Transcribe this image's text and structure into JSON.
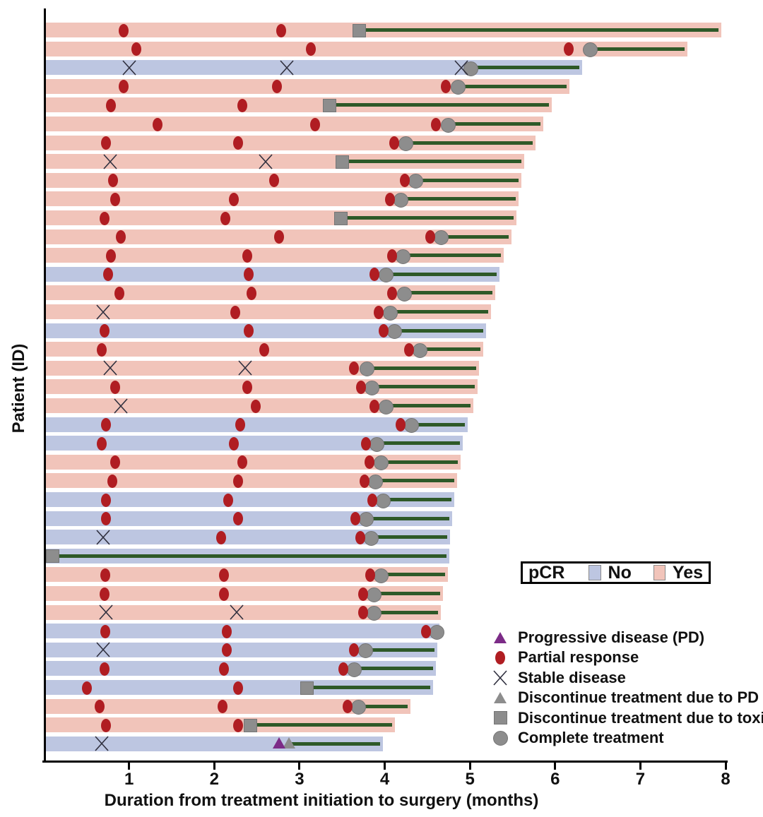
{
  "axes": {
    "x_title": "Duration from treatment initiation to surgery (months)",
    "y_title": "Patient (ID)",
    "x_ticks": [
      "1",
      "2",
      "3",
      "4",
      "5",
      "6",
      "7",
      "8"
    ],
    "x_min": 0,
    "x_max": 8
  },
  "pcr_legend": {
    "label": "pCR",
    "no_label": "No",
    "yes_label": "Yes"
  },
  "marker_legend": [
    {
      "type": "pd",
      "label": "Progressive disease (PD)"
    },
    {
      "type": "pr",
      "label": "Partial response"
    },
    {
      "type": "sd",
      "label": "Stable disease"
    },
    {
      "type": "pd_discontinue",
      "label": "Discontinue treatment due to PD"
    },
    {
      "type": "toxicity",
      "label": "Discontinue treatment due to toxicity"
    },
    {
      "type": "complete",
      "label": "Complete treatment"
    }
  ],
  "colors": {
    "pcr_yes_bar": "#f1c4ba",
    "pcr_no_bar": "#bdc6e1",
    "treatment_line": "#2e5928",
    "partial_response": "#b01d22",
    "gray_marker": "#8d8d8d",
    "gray_marker_edge": "#757575",
    "progressive_disease": "#7c2b87",
    "stable_disease_x": "#30303f",
    "axis": "#000000"
  },
  "chart_data": {
    "type": "swimmer_plot",
    "title": "",
    "xlabel": "Duration from treatment initiation to surgery (months)",
    "ylabel": "Patient (ID)",
    "xlim": [
      0,
      8
    ],
    "legend_position": "right-bottom",
    "event_types": {
      "pr": "partial response",
      "sd": "stable disease",
      "pd": "progressive disease"
    },
    "end_types": {
      "complete": "complete treatment",
      "toxicity": "discontinue treatment due to toxicity",
      "pd_discontinue": "discontinue treatment due to PD"
    },
    "patients": [
      {
        "id": 1,
        "pcr": "Yes",
        "surgery": 7.95,
        "end": {
          "type": "toxicity",
          "x": 3.7
        },
        "events": [
          {
            "t": "pr",
            "x": 0.95
          },
          {
            "t": "pr",
            "x": 2.8
          }
        ]
      },
      {
        "id": 2,
        "pcr": "Yes",
        "surgery": 7.55,
        "end": {
          "type": "complete",
          "x": 6.4
        },
        "events": [
          {
            "t": "pr",
            "x": 1.1
          },
          {
            "t": "pr",
            "x": 3.15
          },
          {
            "t": "pr",
            "x": 6.18
          }
        ]
      },
      {
        "id": 3,
        "pcr": "No",
        "surgery": 6.32,
        "end": {
          "type": "complete",
          "x": 5.0
        },
        "events": [
          {
            "t": "sd",
            "x": 1.0
          },
          {
            "t": "sd",
            "x": 2.85
          },
          {
            "t": "sd",
            "x": 4.9
          }
        ]
      },
      {
        "id": 4,
        "pcr": "Yes",
        "surgery": 6.17,
        "end": {
          "type": "complete",
          "x": 4.85
        },
        "events": [
          {
            "t": "pr",
            "x": 0.95
          },
          {
            "t": "pr",
            "x": 2.75
          },
          {
            "t": "pr",
            "x": 4.73
          }
        ]
      },
      {
        "id": 5,
        "pcr": "Yes",
        "surgery": 5.96,
        "end": {
          "type": "toxicity",
          "x": 3.35
        },
        "events": [
          {
            "t": "pr",
            "x": 0.8
          },
          {
            "t": "pr",
            "x": 2.35
          }
        ]
      },
      {
        "id": 6,
        "pcr": "Yes",
        "surgery": 5.86,
        "end": {
          "type": "complete",
          "x": 4.73
        },
        "events": [
          {
            "t": "pr",
            "x": 1.35
          },
          {
            "t": "pr",
            "x": 3.2
          },
          {
            "t": "pr",
            "x": 4.62
          }
        ]
      },
      {
        "id": 7,
        "pcr": "Yes",
        "surgery": 5.77,
        "end": {
          "type": "complete",
          "x": 4.24
        },
        "events": [
          {
            "t": "pr",
            "x": 0.75
          },
          {
            "t": "pr",
            "x": 2.3
          },
          {
            "t": "pr",
            "x": 4.13
          }
        ]
      },
      {
        "id": 8,
        "pcr": "Yes",
        "surgery": 5.64,
        "end": {
          "type": "toxicity",
          "x": 3.5
        },
        "events": [
          {
            "t": "sd",
            "x": 0.78
          },
          {
            "t": "sd",
            "x": 2.6
          }
        ]
      },
      {
        "id": 9,
        "pcr": "Yes",
        "surgery": 5.6,
        "end": {
          "type": "complete",
          "x": 4.35
        },
        "events": [
          {
            "t": "pr",
            "x": 0.83
          },
          {
            "t": "pr",
            "x": 2.72
          },
          {
            "t": "pr",
            "x": 4.25
          }
        ]
      },
      {
        "id": 10,
        "pcr": "Yes",
        "surgery": 5.57,
        "end": {
          "type": "complete",
          "x": 4.18
        },
        "events": [
          {
            "t": "pr",
            "x": 0.85
          },
          {
            "t": "pr",
            "x": 2.25
          },
          {
            "t": "pr",
            "x": 4.08
          }
        ]
      },
      {
        "id": 11,
        "pcr": "Yes",
        "surgery": 5.55,
        "end": {
          "type": "toxicity",
          "x": 3.48
        },
        "events": [
          {
            "t": "pr",
            "x": 0.73
          },
          {
            "t": "pr",
            "x": 2.15
          }
        ]
      },
      {
        "id": 12,
        "pcr": "Yes",
        "surgery": 5.49,
        "end": {
          "type": "complete",
          "x": 4.65
        },
        "events": [
          {
            "t": "pr",
            "x": 0.92
          },
          {
            "t": "pr",
            "x": 2.78
          },
          {
            "t": "pr",
            "x": 4.55
          }
        ]
      },
      {
        "id": 13,
        "pcr": "Yes",
        "surgery": 5.4,
        "end": {
          "type": "complete",
          "x": 4.2
        },
        "events": [
          {
            "t": "pr",
            "x": 0.8
          },
          {
            "t": "pr",
            "x": 2.4
          },
          {
            "t": "pr",
            "x": 4.1
          }
        ]
      },
      {
        "id": 14,
        "pcr": "No",
        "surgery": 5.35,
        "end": {
          "type": "complete",
          "x": 4.0
        },
        "events": [
          {
            "t": "pr",
            "x": 0.77
          },
          {
            "t": "pr",
            "x": 2.42
          },
          {
            "t": "pr",
            "x": 3.9
          }
        ]
      },
      {
        "id": 15,
        "pcr": "Yes",
        "surgery": 5.3,
        "end": {
          "type": "complete",
          "x": 4.22
        },
        "events": [
          {
            "t": "pr",
            "x": 0.9
          },
          {
            "t": "pr",
            "x": 2.45
          },
          {
            "t": "pr",
            "x": 4.1
          }
        ]
      },
      {
        "id": 16,
        "pcr": "Yes",
        "surgery": 5.25,
        "end": {
          "type": "complete",
          "x": 4.05
        },
        "events": [
          {
            "t": "sd",
            "x": 0.7
          },
          {
            "t": "pr",
            "x": 2.26
          },
          {
            "t": "pr",
            "x": 3.95
          }
        ]
      },
      {
        "id": 17,
        "pcr": "No",
        "surgery": 5.19,
        "end": {
          "type": "complete",
          "x": 4.1
        },
        "events": [
          {
            "t": "pr",
            "x": 0.73
          },
          {
            "t": "pr",
            "x": 2.42
          },
          {
            "t": "pr",
            "x": 4.0
          }
        ]
      },
      {
        "id": 18,
        "pcr": "Yes",
        "surgery": 5.16,
        "end": {
          "type": "complete",
          "x": 4.4
        },
        "events": [
          {
            "t": "pr",
            "x": 0.7
          },
          {
            "t": "pr",
            "x": 2.6
          },
          {
            "t": "pr",
            "x": 4.3
          }
        ]
      },
      {
        "id": 19,
        "pcr": "Yes",
        "surgery": 5.11,
        "end": {
          "type": "complete",
          "x": 3.78
        },
        "events": [
          {
            "t": "sd",
            "x": 0.78
          },
          {
            "t": "sd",
            "x": 2.36
          },
          {
            "t": "pr",
            "x": 3.66
          }
        ]
      },
      {
        "id": 20,
        "pcr": "Yes",
        "surgery": 5.09,
        "end": {
          "type": "complete",
          "x": 3.84
        },
        "events": [
          {
            "t": "pr",
            "x": 0.85
          },
          {
            "t": "pr",
            "x": 2.4
          },
          {
            "t": "pr",
            "x": 3.74
          }
        ]
      },
      {
        "id": 21,
        "pcr": "Yes",
        "surgery": 5.04,
        "end": {
          "type": "complete",
          "x": 4.0
        },
        "events": [
          {
            "t": "sd",
            "x": 0.9
          },
          {
            "t": "pr",
            "x": 2.5
          },
          {
            "t": "pr",
            "x": 3.9
          }
        ]
      },
      {
        "id": 22,
        "pcr": "No",
        "surgery": 4.97,
        "end": {
          "type": "complete",
          "x": 4.3
        },
        "events": [
          {
            "t": "pr",
            "x": 0.75
          },
          {
            "t": "pr",
            "x": 2.32
          },
          {
            "t": "pr",
            "x": 4.2
          }
        ]
      },
      {
        "id": 23,
        "pcr": "No",
        "surgery": 4.92,
        "end": {
          "type": "complete",
          "x": 3.9
        },
        "events": [
          {
            "t": "pr",
            "x": 0.7
          },
          {
            "t": "pr",
            "x": 2.25
          },
          {
            "t": "pr",
            "x": 3.8
          }
        ]
      },
      {
        "id": 24,
        "pcr": "Yes",
        "surgery": 4.89,
        "end": {
          "type": "complete",
          "x": 3.95
        },
        "events": [
          {
            "t": "pr",
            "x": 0.85
          },
          {
            "t": "pr",
            "x": 2.35
          },
          {
            "t": "pr",
            "x": 3.84
          }
        ]
      },
      {
        "id": 25,
        "pcr": "Yes",
        "surgery": 4.85,
        "end": {
          "type": "complete",
          "x": 3.88
        },
        "events": [
          {
            "t": "pr",
            "x": 0.82
          },
          {
            "t": "pr",
            "x": 2.3
          },
          {
            "t": "pr",
            "x": 3.78
          }
        ]
      },
      {
        "id": 26,
        "pcr": "No",
        "surgery": 4.82,
        "end": {
          "type": "complete",
          "x": 3.97
        },
        "events": [
          {
            "t": "pr",
            "x": 0.75
          },
          {
            "t": "pr",
            "x": 2.18
          },
          {
            "t": "pr",
            "x": 3.87
          }
        ]
      },
      {
        "id": 27,
        "pcr": "No",
        "surgery": 4.79,
        "end": {
          "type": "complete",
          "x": 3.77
        },
        "events": [
          {
            "t": "pr",
            "x": 0.75
          },
          {
            "t": "pr",
            "x": 2.3
          },
          {
            "t": "pr",
            "x": 3.67
          }
        ]
      },
      {
        "id": 28,
        "pcr": "No",
        "surgery": 4.77,
        "end": {
          "type": "complete",
          "x": 3.83
        },
        "events": [
          {
            "t": "sd",
            "x": 0.7
          },
          {
            "t": "pr",
            "x": 2.1
          },
          {
            "t": "pr",
            "x": 3.73
          }
        ]
      },
      {
        "id": 29,
        "pcr": "No",
        "surgery": 4.76,
        "end": {
          "type": "toxicity",
          "x": 0.1
        },
        "events": []
      },
      {
        "id": 30,
        "pcr": "Yes",
        "surgery": 4.74,
        "end": {
          "type": "complete",
          "x": 3.95
        },
        "events": [
          {
            "t": "pr",
            "x": 0.74
          },
          {
            "t": "pr",
            "x": 2.13
          },
          {
            "t": "pr",
            "x": 3.85
          }
        ]
      },
      {
        "id": 31,
        "pcr": "Yes",
        "surgery": 4.68,
        "end": {
          "type": "complete",
          "x": 3.86
        },
        "events": [
          {
            "t": "pr",
            "x": 0.73
          },
          {
            "t": "pr",
            "x": 2.13
          },
          {
            "t": "pr",
            "x": 3.76
          }
        ]
      },
      {
        "id": 32,
        "pcr": "Yes",
        "surgery": 4.66,
        "end": {
          "type": "complete",
          "x": 3.86
        },
        "events": [
          {
            "t": "sd",
            "x": 0.73
          },
          {
            "t": "sd",
            "x": 2.26
          },
          {
            "t": "pr",
            "x": 3.76
          }
        ]
      },
      {
        "id": 33,
        "pcr": "No",
        "surgery": 4.64,
        "end": {
          "type": "complete",
          "x": 4.6
        },
        "events": [
          {
            "t": "pr",
            "x": 0.74
          },
          {
            "t": "pr",
            "x": 2.16
          },
          {
            "t": "pr",
            "x": 4.5
          }
        ]
      },
      {
        "id": 34,
        "pcr": "No",
        "surgery": 4.62,
        "end": {
          "type": "complete",
          "x": 3.76
        },
        "events": [
          {
            "t": "sd",
            "x": 0.7
          },
          {
            "t": "pr",
            "x": 2.16
          },
          {
            "t": "pr",
            "x": 3.66
          }
        ]
      },
      {
        "id": 35,
        "pcr": "No",
        "surgery": 4.6,
        "end": {
          "type": "complete",
          "x": 3.63
        },
        "events": [
          {
            "t": "pr",
            "x": 0.73
          },
          {
            "t": "pr",
            "x": 2.13
          },
          {
            "t": "pr",
            "x": 3.53
          }
        ]
      },
      {
        "id": 36,
        "pcr": "No",
        "surgery": 4.57,
        "end": {
          "type": "toxicity",
          "x": 3.08
        },
        "events": [
          {
            "t": "pr",
            "x": 0.52
          },
          {
            "t": "pr",
            "x": 2.3
          }
        ]
      },
      {
        "id": 37,
        "pcr": "Yes",
        "surgery": 4.3,
        "end": {
          "type": "complete",
          "x": 3.68
        },
        "events": [
          {
            "t": "pr",
            "x": 0.67
          },
          {
            "t": "pr",
            "x": 2.11
          },
          {
            "t": "pr",
            "x": 3.58
          }
        ]
      },
      {
        "id": 38,
        "pcr": "Yes",
        "surgery": 4.12,
        "end": {
          "type": "toxicity",
          "x": 2.42
        },
        "events": [
          {
            "t": "pr",
            "x": 0.75
          },
          {
            "t": "pr",
            "x": 2.3
          }
        ]
      },
      {
        "id": 39,
        "pcr": "No",
        "surgery": 3.98,
        "end": {
          "type": "pd_discontinue",
          "x": 2.88
        },
        "events": [
          {
            "t": "sd",
            "x": 0.68
          },
          {
            "t": "pd",
            "x": 2.76
          }
        ]
      }
    ]
  }
}
